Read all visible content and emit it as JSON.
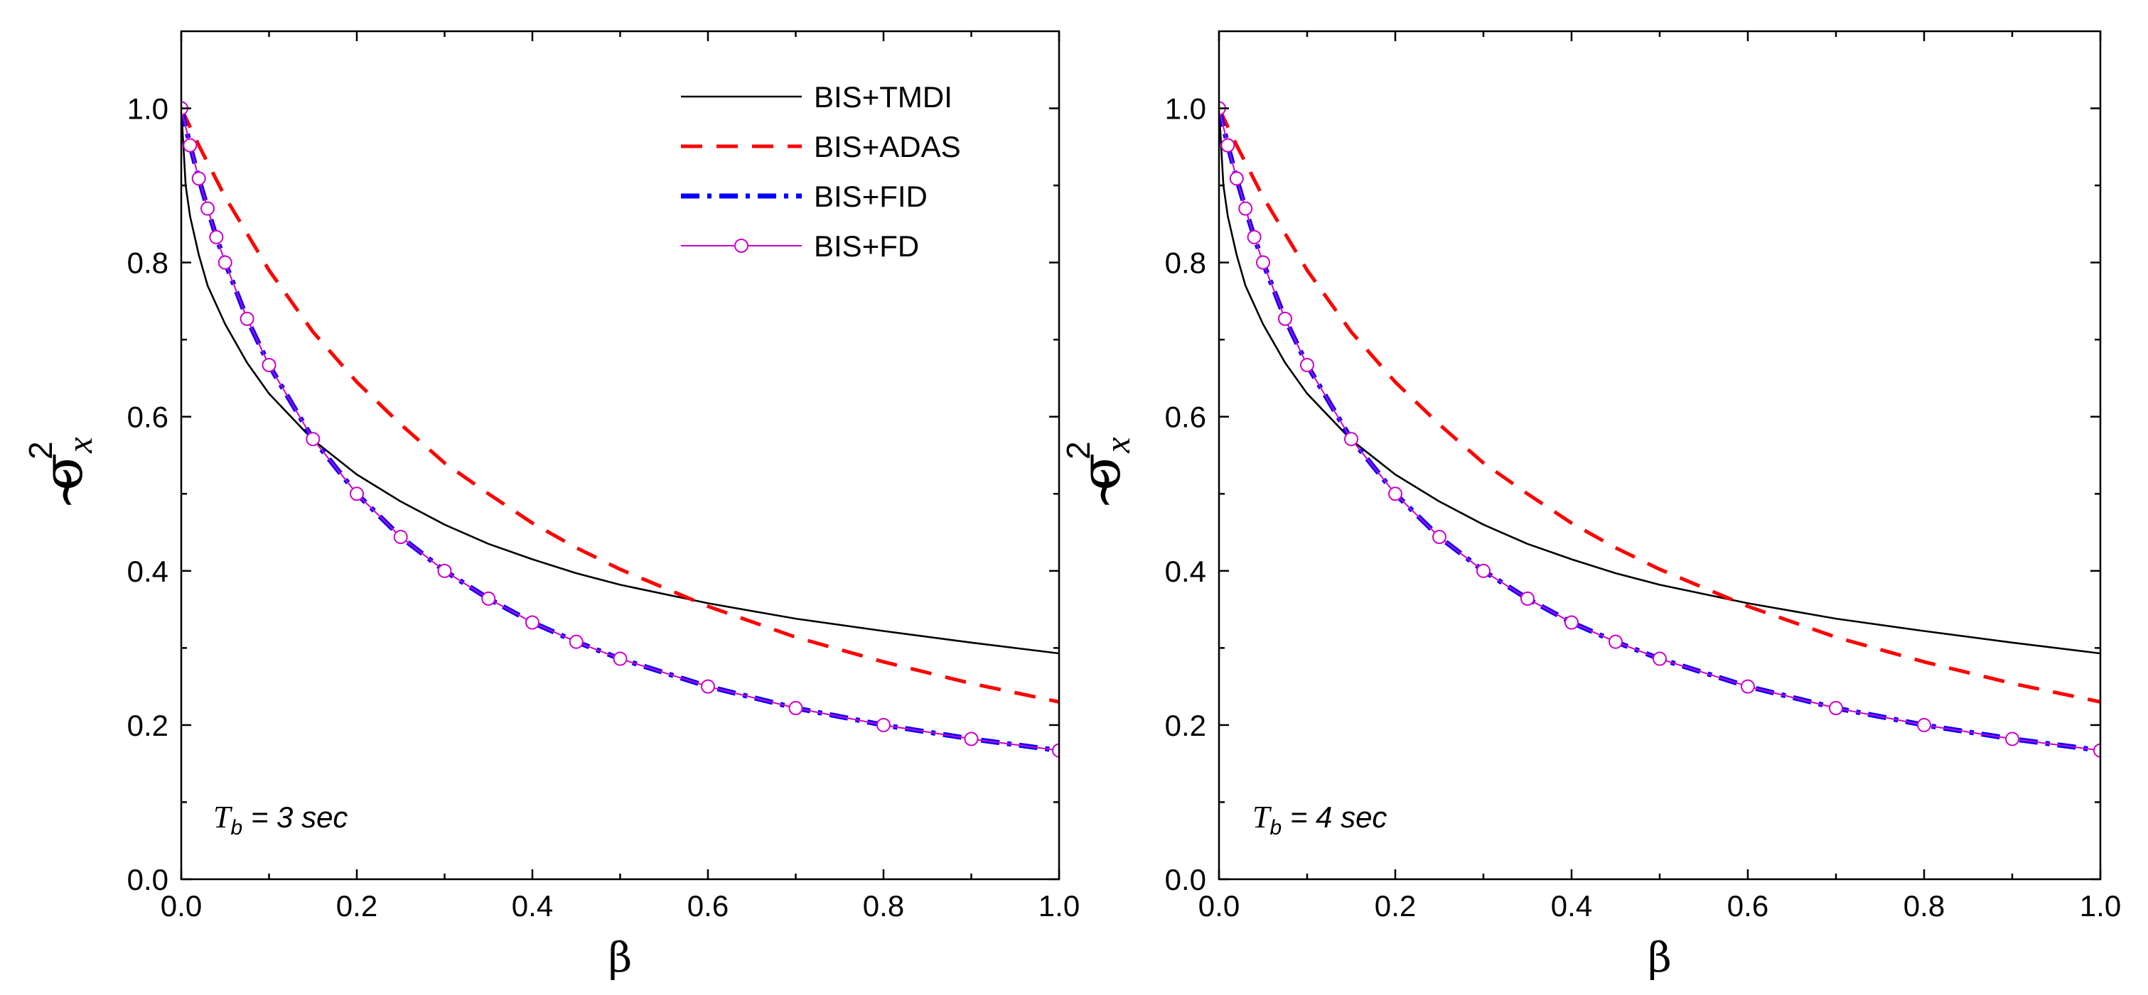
{
  "chart_data": [
    {
      "type": "line",
      "xlabel": "β",
      "ylabel": {
        "symbol": "σ",
        "tilde": "~",
        "superscript": "2",
        "subscript": "x"
      },
      "xlim": [
        0.0,
        1.0
      ],
      "ylim": [
        0.0,
        1.1
      ],
      "xticks": [
        "0.0",
        "0.2",
        "0.4",
        "0.6",
        "0.8",
        "1.0"
      ],
      "yticks": [
        "0.0",
        "0.2",
        "0.4",
        "0.6",
        "0.8",
        "1.0"
      ],
      "annotation": {
        "main": "T",
        "sub": "b",
        "rest": " = 3 sec"
      },
      "legend": {
        "position": "top-right"
      },
      "grid": false,
      "series": [
        {
          "name": "BIS+TMDI",
          "color": "#000000",
          "style": "solid",
          "x": [
            0,
            0.005,
            0.01,
            0.02,
            0.03,
            0.05,
            0.075,
            0.1,
            0.15,
            0.2,
            0.25,
            0.3,
            0.35,
            0.4,
            0.45,
            0.5,
            0.6,
            0.7,
            0.8,
            0.9,
            1.0
          ],
          "y": [
            1.0,
            0.9,
            0.86,
            0.81,
            0.77,
            0.72,
            0.67,
            0.63,
            0.57,
            0.525,
            0.49,
            0.46,
            0.435,
            0.415,
            0.397,
            0.382,
            0.358,
            0.338,
            0.322,
            0.307,
            0.293
          ]
        },
        {
          "name": "BIS+ADAS",
          "color": "#ff0000",
          "style": "dashed",
          "x": [
            0,
            0.02,
            0.05,
            0.1,
            0.15,
            0.2,
            0.25,
            0.3,
            0.35,
            0.4,
            0.45,
            0.5,
            0.6,
            0.7,
            0.8,
            0.9,
            1.0
          ],
          "y": [
            1.0,
            0.952,
            0.885,
            0.79,
            0.71,
            0.645,
            0.59,
            0.54,
            0.5,
            0.462,
            0.43,
            0.402,
            0.354,
            0.314,
            0.282,
            0.254,
            0.23
          ]
        },
        {
          "name": "BIS+FID",
          "color": "#0000ff",
          "style": "dashdot",
          "x": [
            0,
            0.01,
            0.02,
            0.03,
            0.04,
            0.05,
            0.075,
            0.1,
            0.15,
            0.2,
            0.25,
            0.3,
            0.35,
            0.4,
            0.45,
            0.5,
            0.6,
            0.7,
            0.8,
            0.9,
            1.0
          ],
          "y": [
            1.0,
            0.952,
            0.909,
            0.87,
            0.833,
            0.8,
            0.727,
            0.667,
            0.571,
            0.5,
            0.444,
            0.4,
            0.364,
            0.333,
            0.308,
            0.286,
            0.25,
            0.222,
            0.2,
            0.182,
            0.167
          ]
        },
        {
          "name": "BIS+FD",
          "color": "#cc00cc",
          "style": "solid-circle",
          "x": [
            0,
            0.01,
            0.02,
            0.03,
            0.04,
            0.05,
            0.075,
            0.1,
            0.15,
            0.2,
            0.25,
            0.3,
            0.35,
            0.4,
            0.45,
            0.5,
            0.6,
            0.7,
            0.8,
            0.9,
            1.0
          ],
          "y": [
            1.0,
            0.952,
            0.909,
            0.87,
            0.833,
            0.8,
            0.727,
            0.667,
            0.571,
            0.5,
            0.444,
            0.4,
            0.364,
            0.333,
            0.308,
            0.286,
            0.25,
            0.222,
            0.2,
            0.182,
            0.167
          ]
        }
      ]
    },
    {
      "type": "line",
      "xlabel": "β",
      "ylabel": {
        "symbol": "σ",
        "tilde": "~",
        "superscript": "2",
        "subscript": "x"
      },
      "xlim": [
        0.0,
        1.0
      ],
      "ylim": [
        0.0,
        1.1
      ],
      "xticks": [
        "0.0",
        "0.2",
        "0.4",
        "0.6",
        "0.8",
        "1.0"
      ],
      "yticks": [
        "0.0",
        "0.2",
        "0.4",
        "0.6",
        "0.8",
        "1.0"
      ],
      "annotation": {
        "main": "T",
        "sub": "b",
        "rest": " = 4 sec"
      },
      "legend": null,
      "grid": false,
      "series": [
        {
          "color": "#000000",
          "style": "solid",
          "x": [
            0,
            0.005,
            0.01,
            0.02,
            0.03,
            0.05,
            0.075,
            0.1,
            0.15,
            0.2,
            0.25,
            0.3,
            0.35,
            0.4,
            0.45,
            0.5,
            0.6,
            0.7,
            0.8,
            0.9,
            1.0
          ],
          "y": [
            1.0,
            0.9,
            0.86,
            0.81,
            0.77,
            0.72,
            0.67,
            0.63,
            0.57,
            0.525,
            0.49,
            0.46,
            0.435,
            0.415,
            0.397,
            0.382,
            0.358,
            0.338,
            0.322,
            0.307,
            0.293
          ]
        },
        {
          "color": "#ff0000",
          "style": "dashed",
          "x": [
            0,
            0.02,
            0.05,
            0.1,
            0.15,
            0.2,
            0.25,
            0.3,
            0.35,
            0.4,
            0.45,
            0.5,
            0.6,
            0.7,
            0.8,
            0.9,
            1.0
          ],
          "y": [
            1.0,
            0.952,
            0.885,
            0.79,
            0.71,
            0.645,
            0.59,
            0.54,
            0.5,
            0.462,
            0.43,
            0.402,
            0.354,
            0.314,
            0.282,
            0.254,
            0.23
          ]
        },
        {
          "color": "#0000ff",
          "style": "dashdot",
          "x": [
            0,
            0.01,
            0.02,
            0.03,
            0.04,
            0.05,
            0.075,
            0.1,
            0.15,
            0.2,
            0.25,
            0.3,
            0.35,
            0.4,
            0.45,
            0.5,
            0.6,
            0.7,
            0.8,
            0.9,
            1.0
          ],
          "y": [
            1.0,
            0.952,
            0.909,
            0.87,
            0.833,
            0.8,
            0.727,
            0.667,
            0.571,
            0.5,
            0.444,
            0.4,
            0.364,
            0.333,
            0.308,
            0.286,
            0.25,
            0.222,
            0.2,
            0.182,
            0.167
          ]
        },
        {
          "color": "#cc00cc",
          "style": "solid-circle",
          "x": [
            0,
            0.01,
            0.02,
            0.03,
            0.04,
            0.05,
            0.075,
            0.1,
            0.15,
            0.2,
            0.25,
            0.3,
            0.35,
            0.4,
            0.45,
            0.5,
            0.6,
            0.7,
            0.8,
            0.9,
            1.0
          ],
          "y": [
            1.0,
            0.952,
            0.909,
            0.87,
            0.833,
            0.8,
            0.727,
            0.667,
            0.571,
            0.5,
            0.444,
            0.4,
            0.364,
            0.333,
            0.308,
            0.286,
            0.25,
            0.222,
            0.2,
            0.182,
            0.167
          ]
        }
      ]
    }
  ]
}
